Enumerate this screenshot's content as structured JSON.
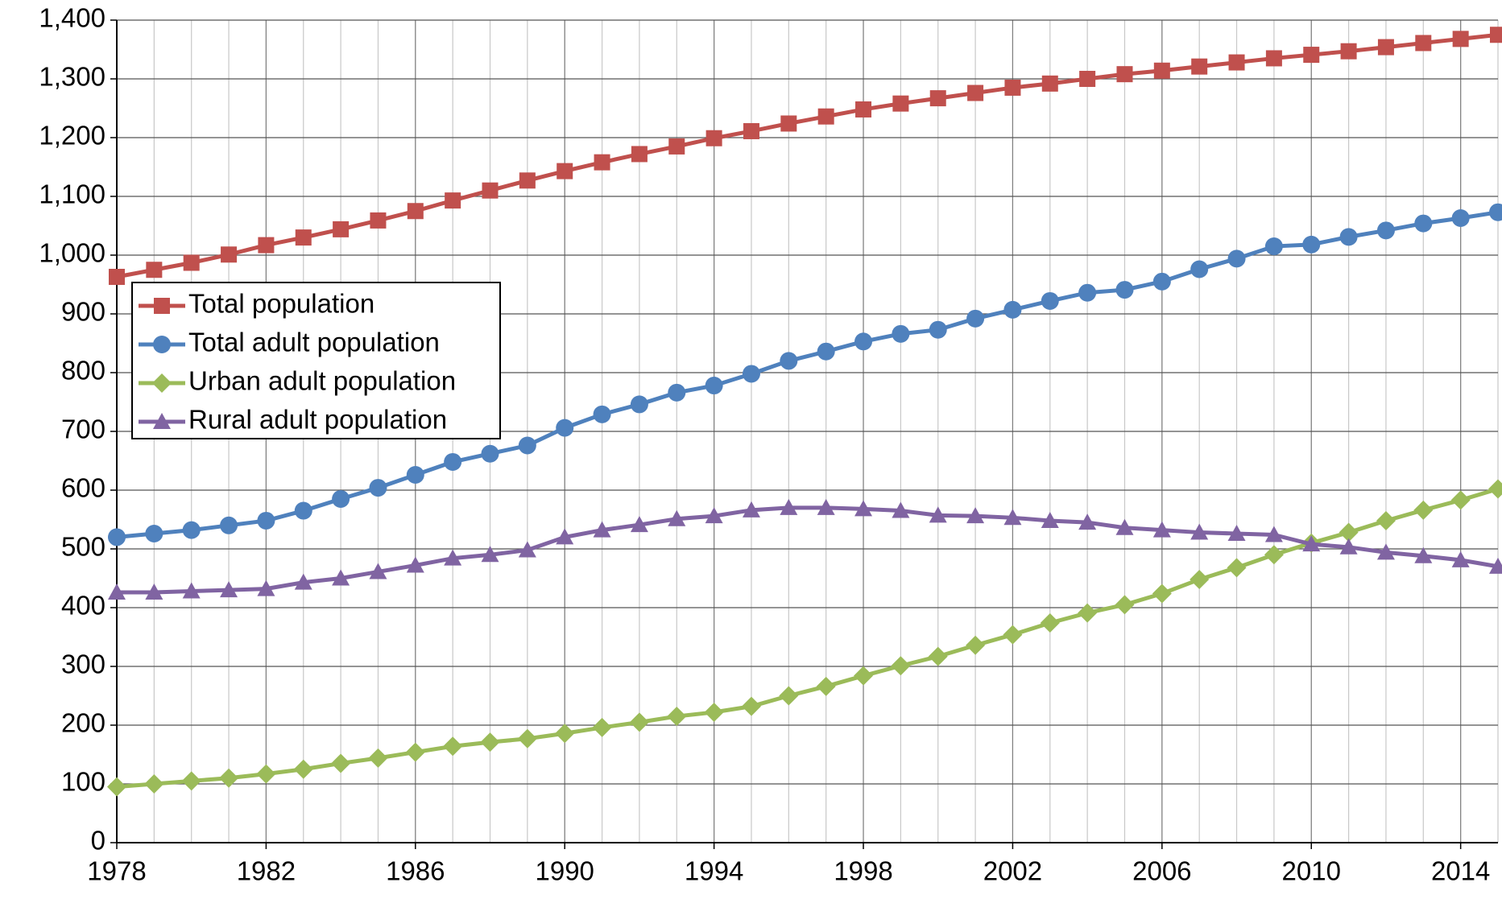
{
  "chart_data": {
    "type": "line",
    "x": [
      1978,
      1979,
      1980,
      1981,
      1982,
      1983,
      1984,
      1985,
      1986,
      1987,
      1988,
      1989,
      1990,
      1991,
      1992,
      1993,
      1994,
      1995,
      1996,
      1997,
      1998,
      1999,
      2000,
      2001,
      2002,
      2003,
      2004,
      2005,
      2006,
      2007,
      2008,
      2009,
      2010,
      2011,
      2012,
      2013,
      2014,
      2015
    ],
    "xlim": [
      1978,
      2015
    ],
    "xticks": [
      1978,
      1982,
      1986,
      1990,
      1994,
      1998,
      2002,
      2006,
      2010,
      2014
    ],
    "ylim": [
      0,
      1400
    ],
    "yticks": [
      0,
      100,
      200,
      300,
      400,
      500,
      600,
      700,
      800,
      900,
      {
        "value": 1000,
        "label": "1,000"
      },
      {
        "value": 1100,
        "label": "1,100"
      },
      {
        "value": 1200,
        "label": "1,200"
      },
      {
        "value": 1300,
        "label": "1,300"
      },
      {
        "value": 1400,
        "label": "1,400"
      }
    ],
    "grid": true,
    "legend": "upper left",
    "series": [
      {
        "name": "Total population",
        "color": "#c0504d",
        "marker": "square",
        "values": [
          963,
          975,
          987,
          1001,
          1017,
          1030,
          1044,
          1059,
          1075,
          1093,
          1110,
          1127,
          1143,
          1158,
          1172,
          1185,
          1199,
          1211,
          1224,
          1236,
          1248,
          1258,
          1267,
          1276,
          1285,
          1292,
          1300,
          1308,
          1314,
          1321,
          1328,
          1335,
          1341,
          1347,
          1354,
          1361,
          1368,
          1375
        ]
      },
      {
        "name": "Total adult population",
        "color": "#4f81bd",
        "marker": "circle",
        "values": [
          520,
          526,
          532,
          540,
          548,
          565,
          585,
          604,
          626,
          648,
          662,
          676,
          706,
          729,
          746,
          766,
          778,
          798,
          820,
          836,
          853,
          866,
          873,
          892,
          907,
          922,
          936,
          941,
          955,
          976,
          994,
          1015,
          1018,
          1031,
          1042,
          1054,
          1063,
          1073
        ]
      },
      {
        "name": "Urban adult population",
        "color": "#9bbb59",
        "marker": "diamond",
        "values": [
          95,
          100,
          105,
          110,
          117,
          125,
          135,
          144,
          154,
          164,
          171,
          177,
          186,
          196,
          205,
          215,
          222,
          232,
          250,
          266,
          284,
          301,
          317,
          336,
          354,
          374,
          391,
          405,
          424,
          448,
          468,
          490,
          510,
          528,
          548,
          566,
          583,
          602
        ]
      },
      {
        "name": "Rural adult population",
        "color": "#8064a2",
        "marker": "triangle",
        "values": [
          426,
          426,
          428,
          430,
          432,
          443,
          450,
          461,
          472,
          484,
          490,
          498,
          520,
          532,
          541,
          551,
          556,
          566,
          570,
          570,
          568,
          565,
          557,
          556,
          553,
          548,
          545,
          536,
          532,
          528,
          526,
          524,
          508,
          503,
          494,
          488,
          481,
          470
        ]
      }
    ]
  }
}
